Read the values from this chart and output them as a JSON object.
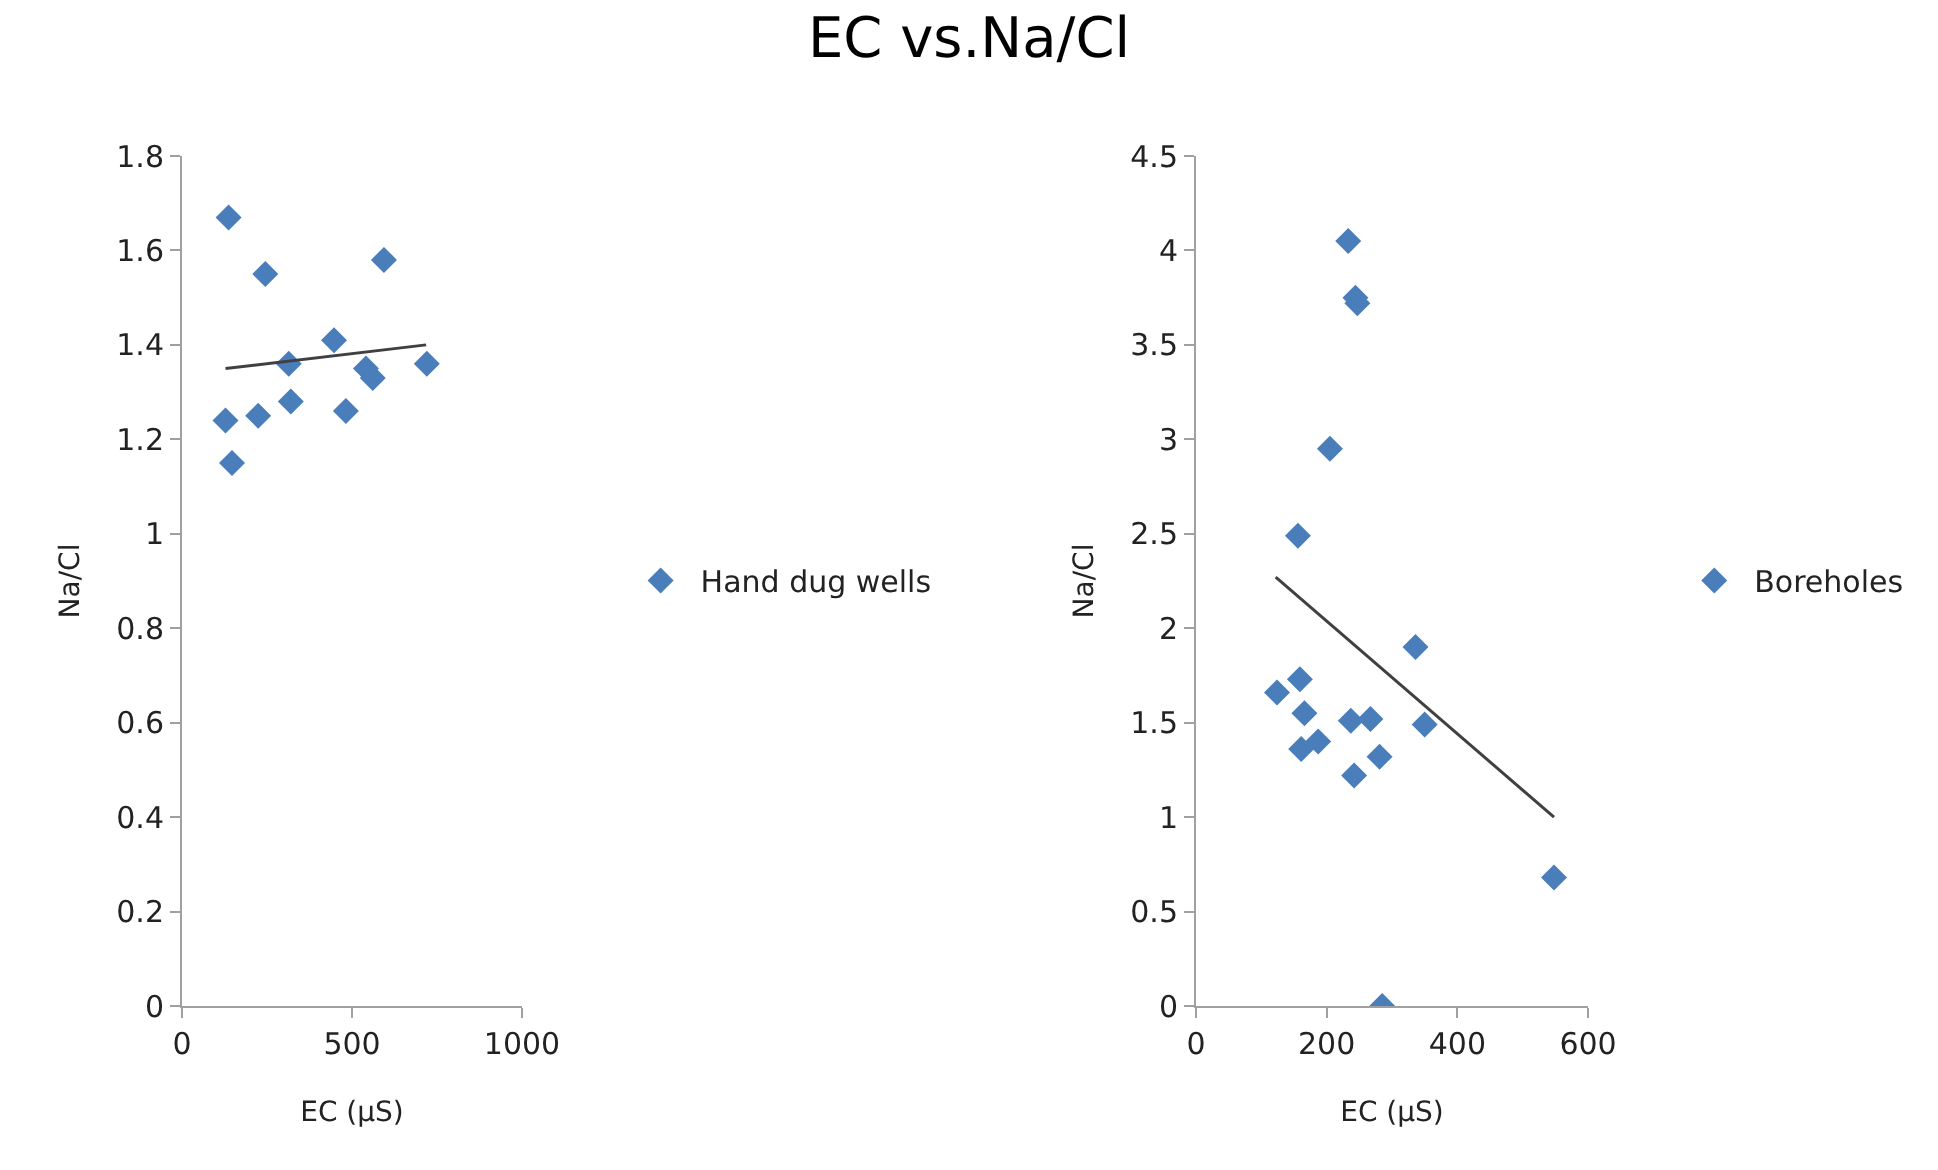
{
  "chart_data": [
    {
      "type": "scatter",
      "xlabel": "EC (µS)",
      "ylabel": "Na/Cl",
      "xlim": [
        0,
        1000
      ],
      "xticks": [
        0,
        500,
        1000
      ],
      "ylim": [
        0,
        1.8
      ],
      "yticks": [
        {
          "value": 0,
          "label": "0"
        },
        0.2,
        0.4,
        0.6,
        0.8,
        1,
        1.2,
        1.4,
        1.6,
        1.8
      ],
      "grid": false,
      "legend": "right",
      "marker": "diamond",
      "series": [
        {
          "name": "Hand dug wells",
          "color": "#4a7ebb",
          "x": [
            128,
            137,
            147,
            224,
            245,
            314,
            320,
            447,
            482,
            541,
            561,
            594,
            720
          ],
          "values": [
            1.24,
            1.67,
            1.15,
            1.25,
            1.55,
            1.36,
            1.28,
            1.41,
            1.26,
            1.35,
            1.33,
            1.58,
            1.36
          ]
        },
        {
          "type": "line",
          "color": "#404040",
          "marker": "none",
          "x": [
            128,
            718
          ],
          "values": [
            1.35,
            1.4
          ]
        }
      ]
    },
    {
      "type": "scatter",
      "title": "EC vs.Na/Cl",
      "xlabel": "EC (µS)",
      "ylabel": "Na/Cl",
      "xlim": [
        0,
        600
      ],
      "xticks": [
        0,
        200,
        400,
        600
      ],
      "ylim": [
        0,
        4.5
      ],
      "yticks": [
        0,
        0.5,
        1,
        1.5,
        2,
        2.5,
        3,
        3.5,
        4,
        4.5
      ],
      "grid": false,
      "legend": "right",
      "marker": "diamond",
      "series": [
        {
          "name": "Boreholes",
          "color": "#4a7ebb",
          "x": [
            233,
            244,
            247,
            205,
            156,
            124,
            159,
            166,
            161,
            187,
            237,
            267,
            242,
            281,
            336,
            350,
            285,
            548
          ],
          "values": [
            4.05,
            3.75,
            3.72,
            2.95,
            2.49,
            1.66,
            1.73,
            1.55,
            1.36,
            1.4,
            1.51,
            1.52,
            1.22,
            1.32,
            1.9,
            1.49,
            0,
            0.68
          ]
        },
        {
          "type": "line",
          "color": "#404040",
          "marker": "none",
          "x": [
            122,
            548
          ],
          "values": [
            2.27,
            1.0
          ]
        }
      ]
    }
  ]
}
